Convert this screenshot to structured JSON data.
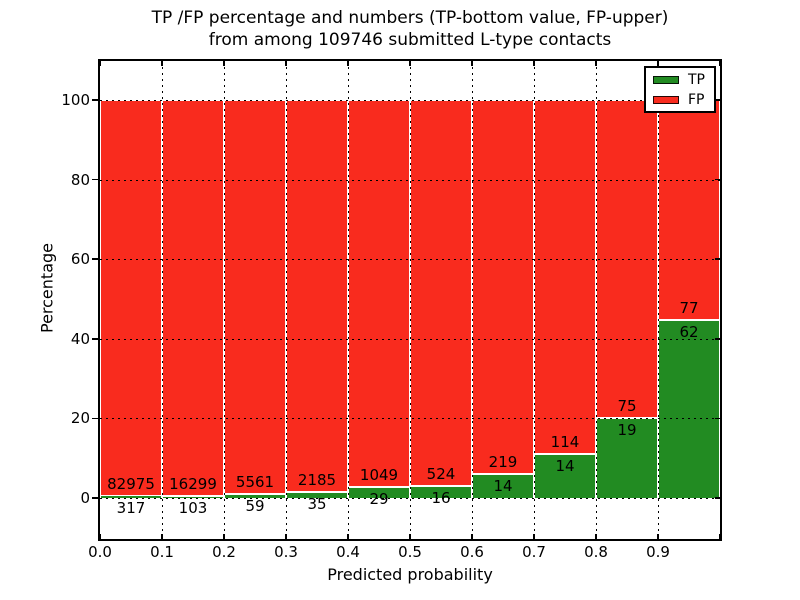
{
  "title": {
    "line1": "TP /FP percentage and numbers (TP-bottom value, FP-upper)",
    "line2": "from among 109746 submitted L-type contacts"
  },
  "axes": {
    "xlabel": "Predicted probability",
    "ylabel": "Percentage",
    "xtick_labels": [
      "0.0",
      "0.1",
      "0.2",
      "0.3",
      "0.4",
      "0.5",
      "0.6",
      "0.7",
      "0.8",
      "0.9"
    ],
    "ytick_labels": [
      "0",
      "20",
      "40",
      "60",
      "80",
      "100"
    ]
  },
  "legend": {
    "position": "upper right",
    "items": [
      {
        "label": "TP",
        "color": "#228b22"
      },
      {
        "label": "FP",
        "color": "#f92b1e"
      }
    ]
  },
  "colors": {
    "tp_green": "#228b22",
    "fp_red": "#f92b1e",
    "grid": "#000000",
    "bar_edge": "#ffffff"
  },
  "chart_data": {
    "type": "bar",
    "stacked": true,
    "percent_normalized": true,
    "title": "TP /FP percentage and numbers (TP-bottom value, FP-upper) from among 109746 submitted L-type contacts",
    "xlabel": "Predicted probability",
    "ylabel": "Percentage",
    "xlim": [
      0.0,
      1.0
    ],
    "ylim": [
      -10,
      110
    ],
    "grid": "dotted",
    "legend_position": "upper right",
    "total_contacts": 109746,
    "bin_width": 0.1,
    "bin_starts": [
      0.0,
      0.1,
      0.2,
      0.3,
      0.4,
      0.5,
      0.6,
      0.7,
      0.8,
      0.9
    ],
    "series": [
      {
        "name": "TP",
        "color": "#228b22",
        "counts": [
          317,
          103,
          59,
          35,
          29,
          16,
          14,
          14,
          19,
          62
        ]
      },
      {
        "name": "FP",
        "color": "#f92b1e",
        "counts": [
          82975,
          16299,
          5561,
          2185,
          1049,
          524,
          219,
          114,
          75,
          77
        ]
      }
    ],
    "annotation_rule": "TP count printed below TP/FP boundary, FP count printed above it"
  }
}
